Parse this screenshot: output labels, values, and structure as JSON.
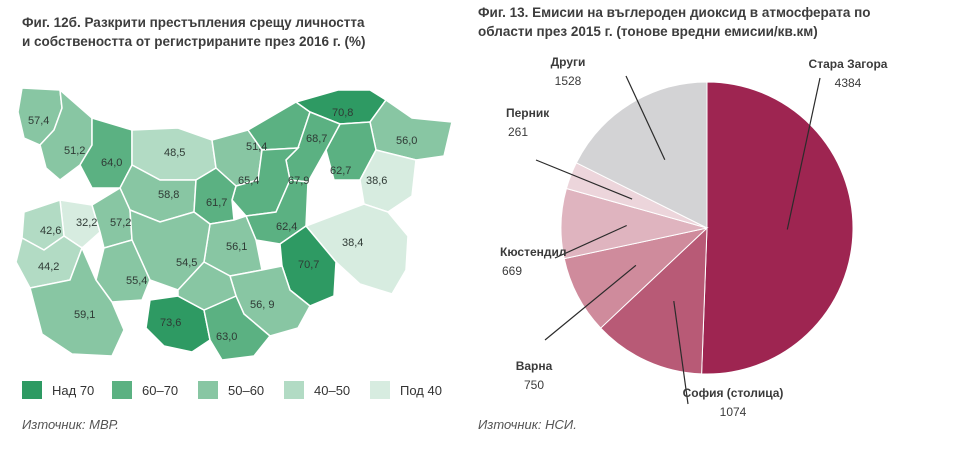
{
  "map_figure": {
    "title_line1": "Фиг. 12б. Разкрити престъпления срещу личността",
    "title_line2": "и собствеността от регистрираните през 2016 г. (%)",
    "source": "Източник: МВР.",
    "legend": [
      {
        "label": "Над 70",
        "color": "#2e9a63"
      },
      {
        "label": "60–70",
        "color": "#5bb182"
      },
      {
        "label": "50–60",
        "color": "#88c6a3"
      },
      {
        "label": "40–50",
        "color": "#b2dbc4"
      },
      {
        "label": "Под 40",
        "color": "#d7ece0"
      }
    ],
    "values": [
      "57,4",
      "51,2",
      "64,0",
      "48,5",
      "51,4",
      "68,7",
      "70,8",
      "56,0",
      "62,7",
      "67,9",
      "65,4",
      "38,6",
      "58,8",
      "61,7",
      "32,2",
      "57,2",
      "42,6",
      "44,2",
      "62,4",
      "56,1",
      "54,5",
      "38,4",
      "70,7",
      "55,4",
      "59,1",
      "73,6",
      "56, 9",
      "63,0"
    ]
  },
  "chart_data": {
    "type": "pie",
    "title_line1": "Фиг. 13. Емисии на въглероден диоксид в атмосферата по",
    "title_line2": "области през 2015 г. (тонове вредни емисии/кв.км)",
    "source": "Източник: НСИ.",
    "slices": [
      {
        "name": "Стара Загора",
        "value": 4384,
        "value_label": "4384",
        "color": "#9e2551"
      },
      {
        "name": "София (столица)",
        "value": 1074,
        "value_label": "1074",
        "color": "#b85a76"
      },
      {
        "name": "Варна",
        "value": 750,
        "value_label": "750",
        "color": "#cf8b9c"
      },
      {
        "name": "Кюстендил",
        "value": 669,
        "value_label": "669",
        "color": "#dfb4bf"
      },
      {
        "name": "Перник",
        "value": 261,
        "value_label": "261",
        "color": "#ecd5db"
      },
      {
        "name": "Други",
        "value": 1528,
        "value_label": "1528",
        "color": "#d3d3d5"
      }
    ],
    "start": "12 o'clock",
    "direction": "clockwise"
  }
}
